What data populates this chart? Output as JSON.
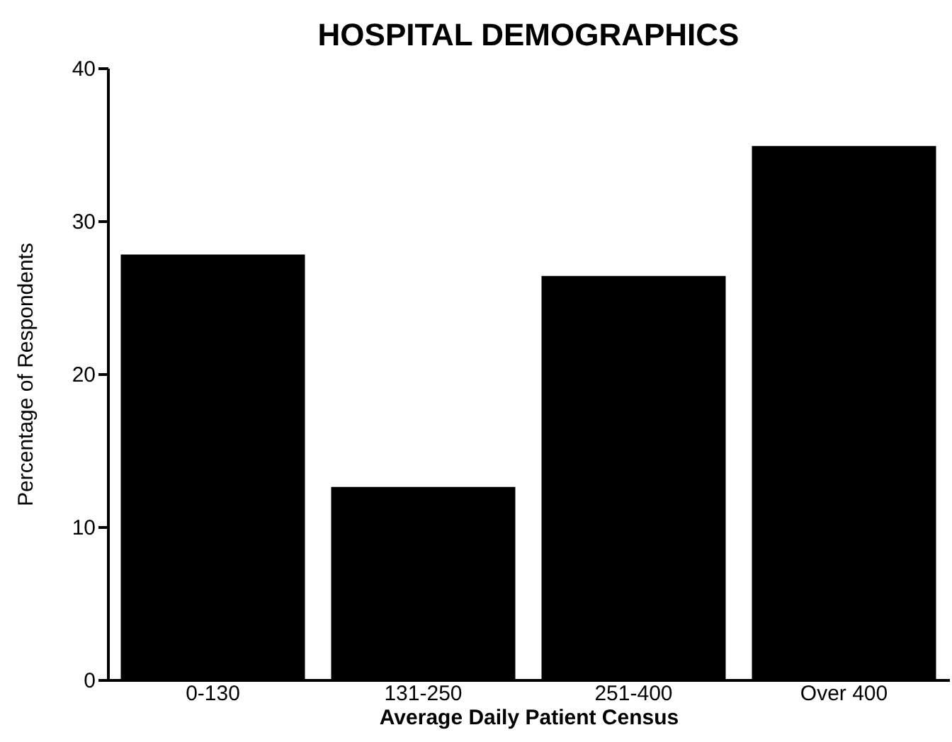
{
  "chart_data": {
    "type": "bar",
    "title": "HOSPITAL DEMOGRAPHICS",
    "xlabel": "Average Daily Patient Census",
    "ylabel": "Percentage of Respondents",
    "categories": [
      "0-130",
      "131-250",
      "251-400",
      "Over  400"
    ],
    "values": [
      27.8,
      12.6,
      26.4,
      34.9
    ],
    "color": "#000000",
    "ylim": [
      0,
      40
    ],
    "yticks": [
      0,
      10,
      20,
      30,
      40
    ],
    "grid": false
  }
}
